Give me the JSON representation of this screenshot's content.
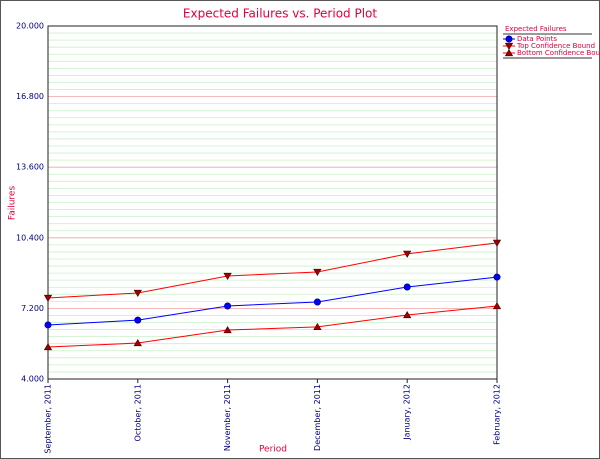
{
  "chart_data": {
    "type": "line",
    "title": "Expected Failures vs. Period Plot",
    "x_label": "Period",
    "y_label": "Failures",
    "categories": [
      "September, 2011",
      "October, 2011",
      "November, 2011",
      "December, 2011",
      "January, 2012",
      "February, 2012"
    ],
    "legend_title": "Expected Failures",
    "series": [
      {
        "name": "Data Points",
        "color": "#0000ff",
        "marker": "circle",
        "marker_color": "#0000ff",
        "values": [
          6.45,
          6.67,
          7.31,
          7.49,
          8.17,
          8.62
        ]
      },
      {
        "name": "Top Confidence Bound",
        "color": "#ff0000",
        "marker": "triangle-down",
        "marker_color": "#a00000",
        "values": [
          7.67,
          7.9,
          8.67,
          8.85,
          9.67,
          10.17
        ]
      },
      {
        "name": "Bottom Confidence Bound",
        "color": "#ff0000",
        "marker": "triangle-up",
        "marker_color": "#a00000",
        "values": [
          5.45,
          5.63,
          6.22,
          6.36,
          6.9,
          7.31
        ]
      }
    ],
    "ylim": [
      4,
      20
    ],
    "yticks": [
      {
        "value": 4,
        "label": "4.000"
      },
      {
        "value": 7.2,
        "label": "7.200"
      },
      {
        "value": 10.4,
        "label": "10.400"
      },
      {
        "value": 13.6,
        "label": "13.600"
      },
      {
        "value": 16.8,
        "label": "16.800"
      },
      {
        "value": 20,
        "label": "20.000"
      }
    ],
    "grid": true,
    "legend": "top-right"
  }
}
